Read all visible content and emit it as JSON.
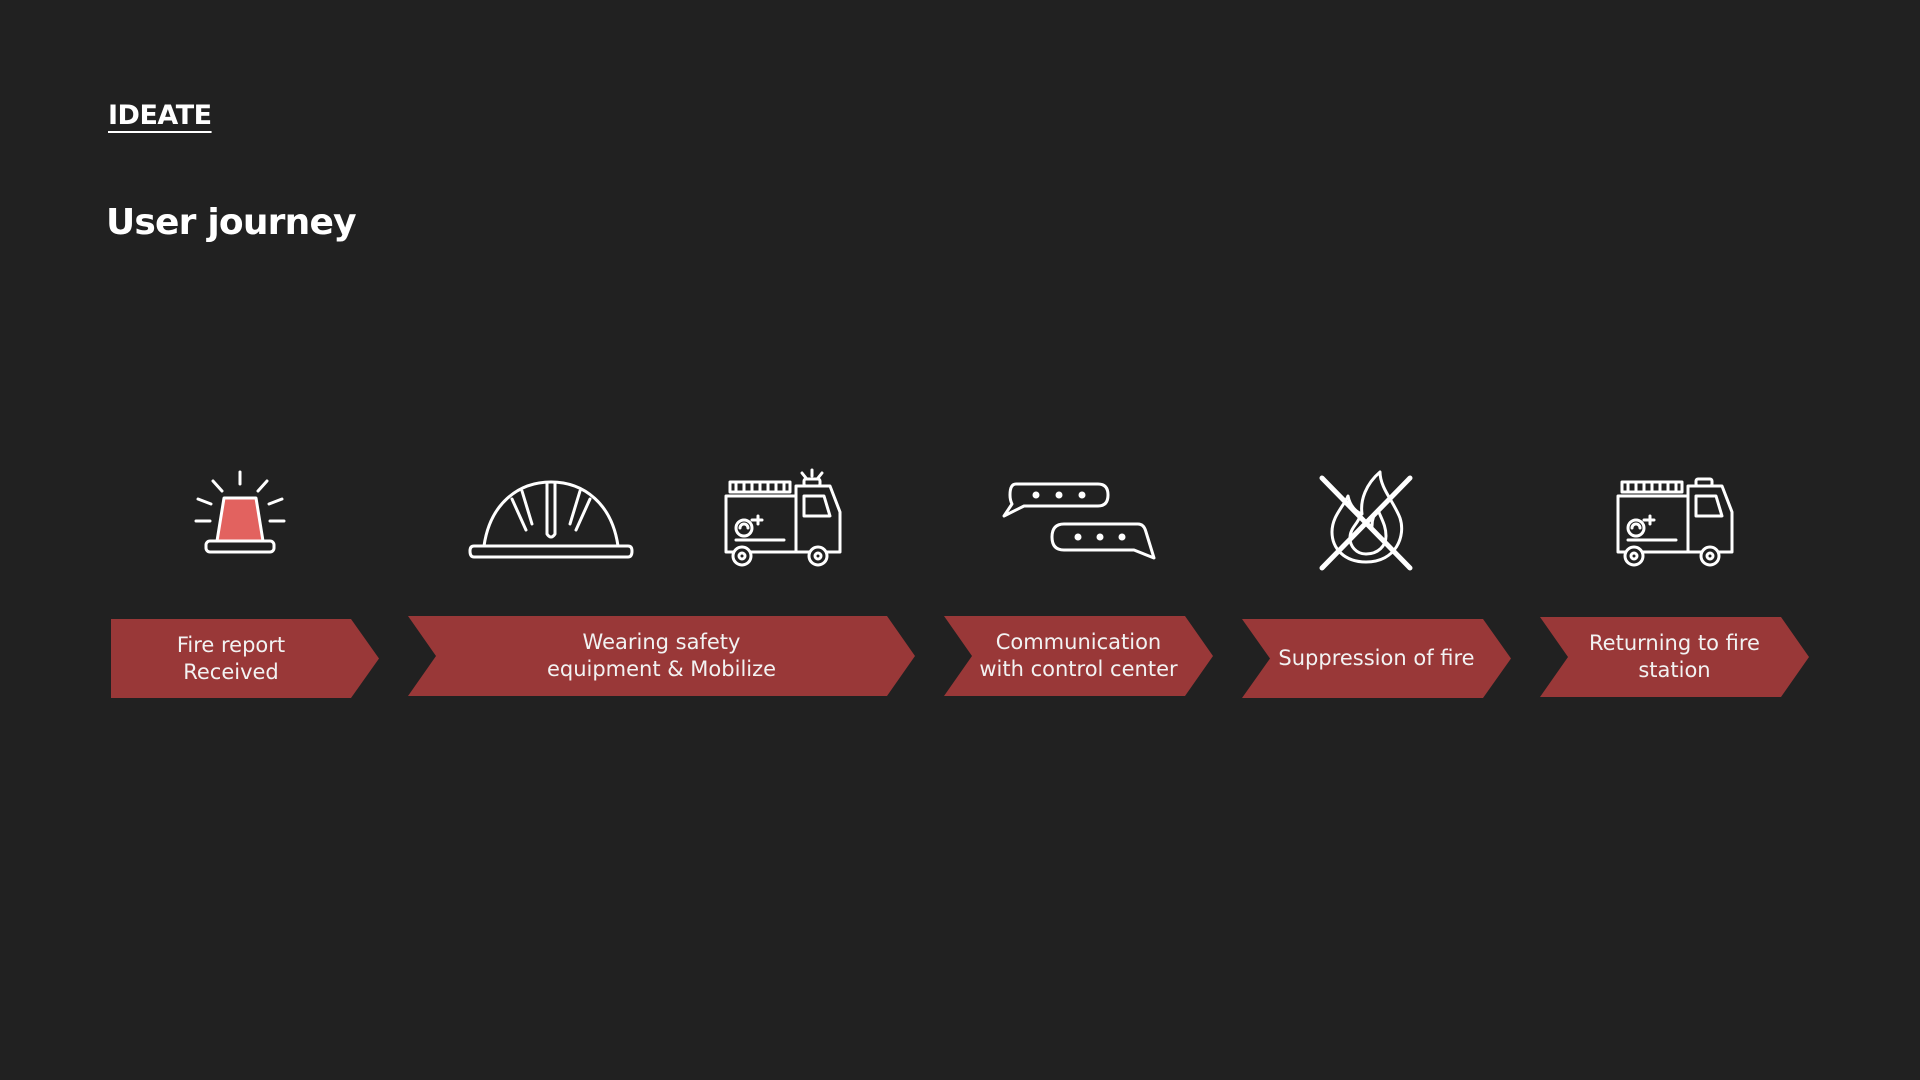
{
  "header": {
    "section_tag": "IDEATE",
    "title": "User journey"
  },
  "colors": {
    "background": "#212121",
    "chevron_fill": "#993838",
    "siren_fill": "#e2625f",
    "icon_stroke": "#ffffff",
    "text": "#ffffff"
  },
  "icons": [
    {
      "name": "siren-icon"
    },
    {
      "name": "helmet-icon"
    },
    {
      "name": "fire-truck-icon"
    },
    {
      "name": "chat-bubbles-icon"
    },
    {
      "name": "no-fire-icon"
    },
    {
      "name": "fire-truck-icon"
    }
  ],
  "journey": {
    "steps": [
      {
        "label": "Fire report\nReceived"
      },
      {
        "label": "Wearing safety\nequipment & Mobilize"
      },
      {
        "label": "Communication\nwith control center"
      },
      {
        "label": "Suppression of fire"
      },
      {
        "label": "Returning to fire\nstation"
      }
    ]
  }
}
